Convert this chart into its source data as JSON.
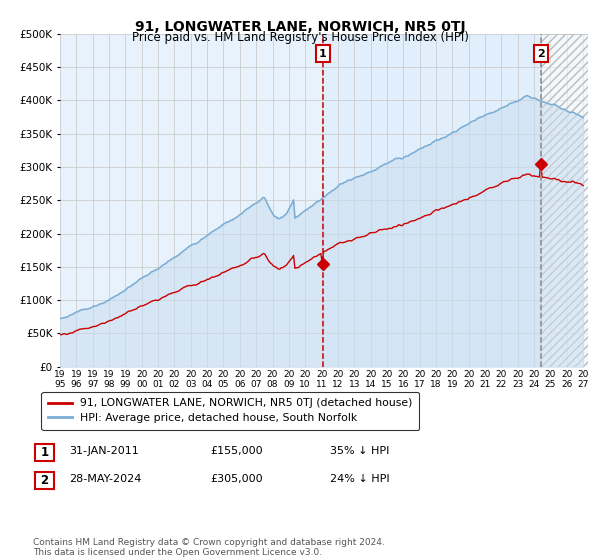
{
  "title": "91, LONGWATER LANE, NORWICH, NR5 0TJ",
  "subtitle": "Price paid vs. HM Land Registry's House Price Index (HPI)",
  "ylim": [
    0,
    500000
  ],
  "yticks": [
    0,
    50000,
    100000,
    150000,
    200000,
    250000,
    300000,
    350000,
    400000,
    450000,
    500000
  ],
  "ytick_labels": [
    "£0",
    "£50K",
    "£100K",
    "£150K",
    "£200K",
    "£250K",
    "£300K",
    "£350K",
    "£400K",
    "£450K",
    "£500K"
  ],
  "marker1_year": 2011.08,
  "marker1_value": 155000,
  "marker2_year": 2024.41,
  "marker2_value": 305000,
  "legend_line1": "91, LONGWATER LANE, NORWICH, NR5 0TJ (detached house)",
  "legend_line2": "HPI: Average price, detached house, South Norfolk",
  "annotation1_label": "1",
  "annotation1_date": "31-JAN-2011",
  "annotation1_price": "£155,000",
  "annotation1_pct": "35% ↓ HPI",
  "annotation2_label": "2",
  "annotation2_date": "28-MAY-2024",
  "annotation2_price": "£305,000",
  "annotation2_pct": "24% ↓ HPI",
  "copyright_text": "Contains HM Land Registry data © Crown copyright and database right 2024.\nThis data is licensed under the Open Government Licence v3.0.",
  "red_line_color": "#cc0000",
  "blue_line_color": "#7aadd4",
  "blue_fill_color": "#c8ddf0",
  "grid_color": "#cccccc",
  "bg_color": "#ffffff",
  "plot_bg": "#e8f2fc"
}
